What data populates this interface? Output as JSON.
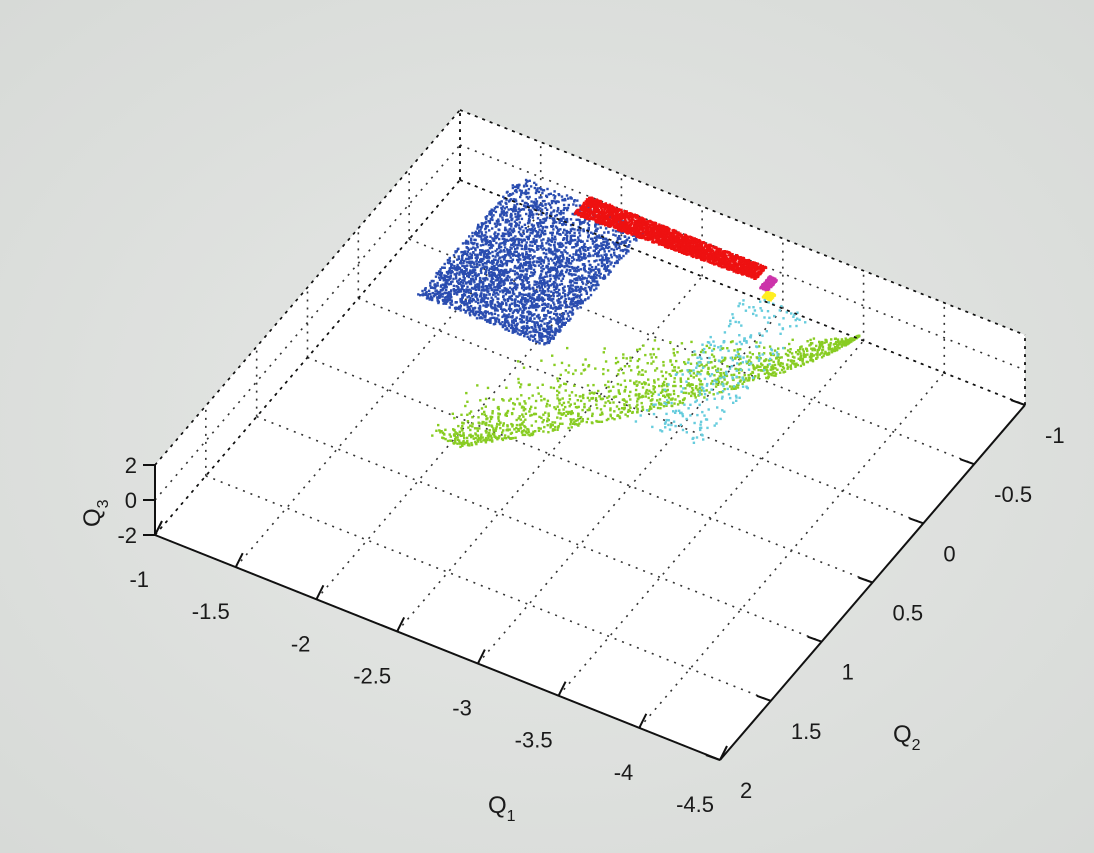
{
  "chart_data": {
    "type": "scatter",
    "dimensions": 3,
    "title": "",
    "axes": {
      "x": {
        "label": "Q",
        "subscript": "1",
        "ticks": [
          "-1",
          "-1.5",
          "-2",
          "-2.5",
          "-3",
          "-3.5",
          "-4",
          "-4.5"
        ],
        "range": [
          -4.5,
          -1
        ]
      },
      "y": {
        "label": "Q",
        "subscript": "2",
        "ticks": [
          "-1",
          "-0.5",
          "0",
          "0.5",
          "1",
          "1.5",
          "2"
        ],
        "range": [
          -1,
          2
        ]
      },
      "z": {
        "label": "Q",
        "subscript": "3",
        "ticks": [
          "2",
          "0",
          "-2"
        ],
        "range": [
          -2,
          2
        ]
      }
    },
    "grid": true,
    "legend": false,
    "colors": {
      "figure_background": "#d9dcd9",
      "axes_background": "#ffffff",
      "grid": "#333333"
    },
    "series": [
      {
        "color": "#2a4db0",
        "q1_range": [
          -2.2,
          -1.4
        ],
        "q2_range": [
          -0.95,
          0.05
        ]
      },
      {
        "color": "#ee1111",
        "q1_range": [
          -2.9,
          -1.8
        ],
        "q2_range": [
          -1.0,
          -0.85
        ]
      },
      {
        "color": "#cc33aa",
        "q1_range": [
          -3.0,
          -2.95
        ],
        "q2_range": [
          -0.95,
          -0.85
        ]
      },
      {
        "color": "#ffee22",
        "q1_range": [
          -3.05,
          -3.0
        ],
        "q2_range": [
          -0.85,
          -0.8
        ]
      },
      {
        "color": "#88cc22",
        "q1_range": [
          -3.6,
          -2.2
        ],
        "q2_range": [
          -0.8,
          0.9
        ]
      },
      {
        "color": "#66ccdd",
        "q1_range": [
          -3.3,
          -2.9
        ],
        "q2_range": [
          -0.8,
          0.3
        ]
      }
    ]
  }
}
